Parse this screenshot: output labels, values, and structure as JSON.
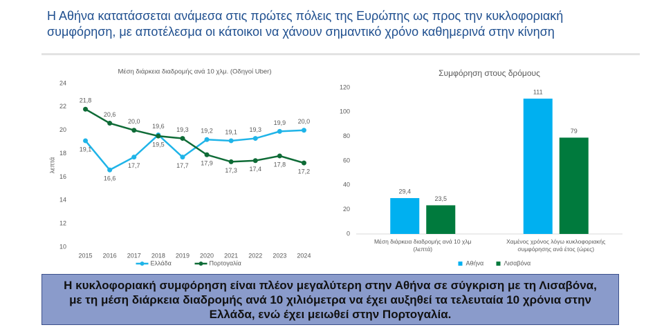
{
  "header": {
    "title": "Η Αθήνα κατατάσσεται ανάμεσα στις πρώτες πόλεις της Ευρώπης ως προς την κυκλοφοριακή συμφόρηση, με αποτέλεσμα οι κάτοικοι να χάνουν σημαντικό χρόνο καθημερινά στην κίνηση"
  },
  "chart_data": [
    {
      "type": "line",
      "title": "Μέση διάρκεια διαδρομής ανά 10 χλμ. (Οδηγοί Uber)",
      "y_label": "λεπτά",
      "categories": [
        "2015",
        "2016",
        "2017",
        "2018",
        "2019",
        "2020",
        "2021",
        "2022",
        "2023",
        "2024"
      ],
      "series": [
        {
          "name": "Ελλάδα",
          "color": "#1fb4e8",
          "values": [
            19.1,
            16.6,
            17.7,
            19.6,
            17.7,
            19.2,
            19.1,
            19.3,
            19.9,
            20.0
          ],
          "value_labels": [
            "19,1",
            "16,6",
            "17,7",
            "19,6",
            "17,7",
            "19,2",
            "19,1",
            "19,3",
            "19,9",
            "20,0"
          ]
        },
        {
          "name": "Πορτογαλία",
          "color": "#0e6b36",
          "values": [
            21.8,
            20.6,
            20.0,
            19.5,
            19.3,
            17.9,
            17.3,
            17.4,
            17.8,
            17.2
          ],
          "value_labels": [
            "21,8",
            "20,6",
            "20,0",
            "19,5",
            "19,3",
            "17,9",
            "17,3",
            "17,4",
            "17,8",
            "17,2"
          ]
        }
      ],
      "ylim": [
        10,
        24
      ],
      "yticks": [
        10,
        12,
        14,
        16,
        18,
        20,
        22,
        24
      ],
      "grid": false,
      "legend": "bottom"
    },
    {
      "type": "bar",
      "title": "Συμφόρηση στους δρόμους",
      "categories": [
        "Μέση διάρκεια διαδρομής ανά 10 χλμ (λεπτά)",
        "Χαμένος χρόνος λόγω κυκλοφοριακής συμφόρησης ανά έτος (ώρες)"
      ],
      "series": [
        {
          "name": "Αθήνα",
          "color": "#00b0f0",
          "values": [
            29.4,
            111
          ],
          "value_labels": [
            "29,4",
            "111"
          ]
        },
        {
          "name": "Λισαβόνα",
          "color": "#007a3d",
          "values": [
            23.5,
            79
          ],
          "value_labels": [
            "23,5",
            "79"
          ]
        }
      ],
      "ylim": [
        0,
        120
      ],
      "yticks": [
        0,
        20,
        40,
        60,
        80,
        100,
        120
      ],
      "grid": false,
      "legend": "bottom"
    }
  ],
  "summary": {
    "text": "Η κυκλοφοριακή συμφόρηση είναι πλέον μεγαλύτερη στην Αθήνα σε σύγκριση με τη Λισαβόνα, με τη μέση διάρκεια διαδρομής ανά 10 χιλιόμετρα να έχει αυξηθεί τα τελευταία 10 χρόνια στην Ελλάδα, ενώ έχει μειωθεί στην Πορτογαλία."
  }
}
